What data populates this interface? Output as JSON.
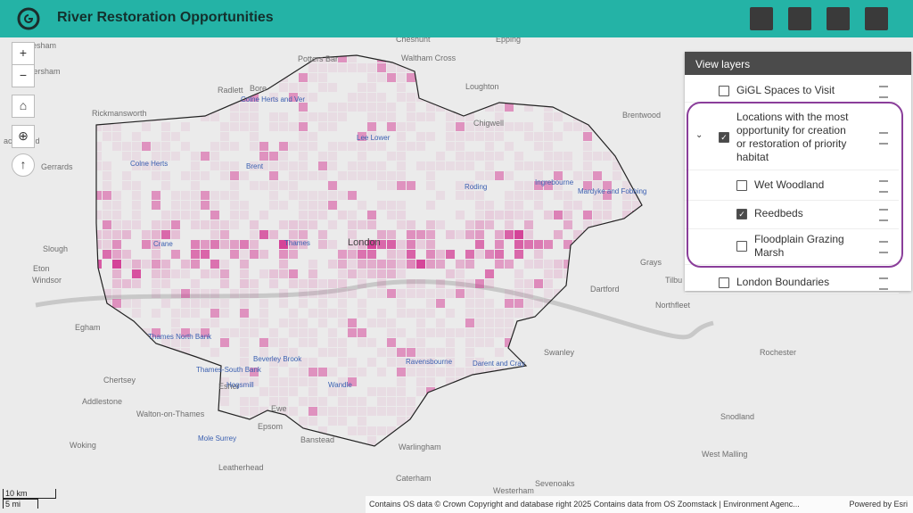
{
  "header": {
    "title": "River Restoration Opportunities"
  },
  "layers_panel": {
    "title": "View layers",
    "layers": [
      {
        "label": "GiGL Spaces to Visit",
        "checked": false
      },
      {
        "label": "Locations with the most opportunity for creation or restoration of priority habitat",
        "checked": true,
        "sublayers": [
          {
            "label": "Wet Woodland",
            "checked": false
          },
          {
            "label": "Reedbeds",
            "checked": true
          },
          {
            "label": "Floodplain Grazing Marsh",
            "checked": false
          }
        ]
      },
      {
        "label": "London Boundaries",
        "checked": false
      }
    ]
  },
  "map": {
    "places": [
      "esham",
      "Amersham",
      "Potters Bar",
      "Cheshunt",
      "Epping",
      "Radlett",
      "Waltham Cross",
      "Loughton",
      "Bore",
      "Rickmansworth",
      "Chigwell",
      "Brentwood",
      "aconsfield",
      "Gerrards",
      "Slough",
      "Eton",
      "Windsor",
      "London",
      "Grays",
      "Dartford",
      "Tilbu",
      "Northfleet",
      "Egham",
      "Chertsey",
      "Swanley",
      "Addlestone",
      "Walton-on-Thames",
      "Esher",
      "Rochester",
      "Ewe",
      "Epsom",
      "Banstead",
      "Woking",
      "Leatherhead",
      "Warlingham",
      "Caterham",
      "Sevenoaks",
      "Westerham",
      "Snodland",
      "West Malling"
    ],
    "rivers": [
      "Colne Herts and Ver",
      "Lee Lower",
      "Colne Herts",
      "Brent",
      "Roding",
      "Ingrebourne",
      "Mardyke and Fobbing",
      "Crane",
      "Thames",
      "Thames North Bank",
      "Thames-South Bank",
      "Beverley Brook",
      "Hogsmill",
      "Wandle",
      "Ravensbourne",
      "Darent and Cray",
      "Mole Surrey"
    ],
    "attribution": "Contains OS data © Crown Copyright and database right 2025 Contains data from OS Zoomstack | Environment Agenc...",
    "powered_by": "Powered by Esri",
    "scale": [
      "10 km",
      "5 mi"
    ]
  }
}
